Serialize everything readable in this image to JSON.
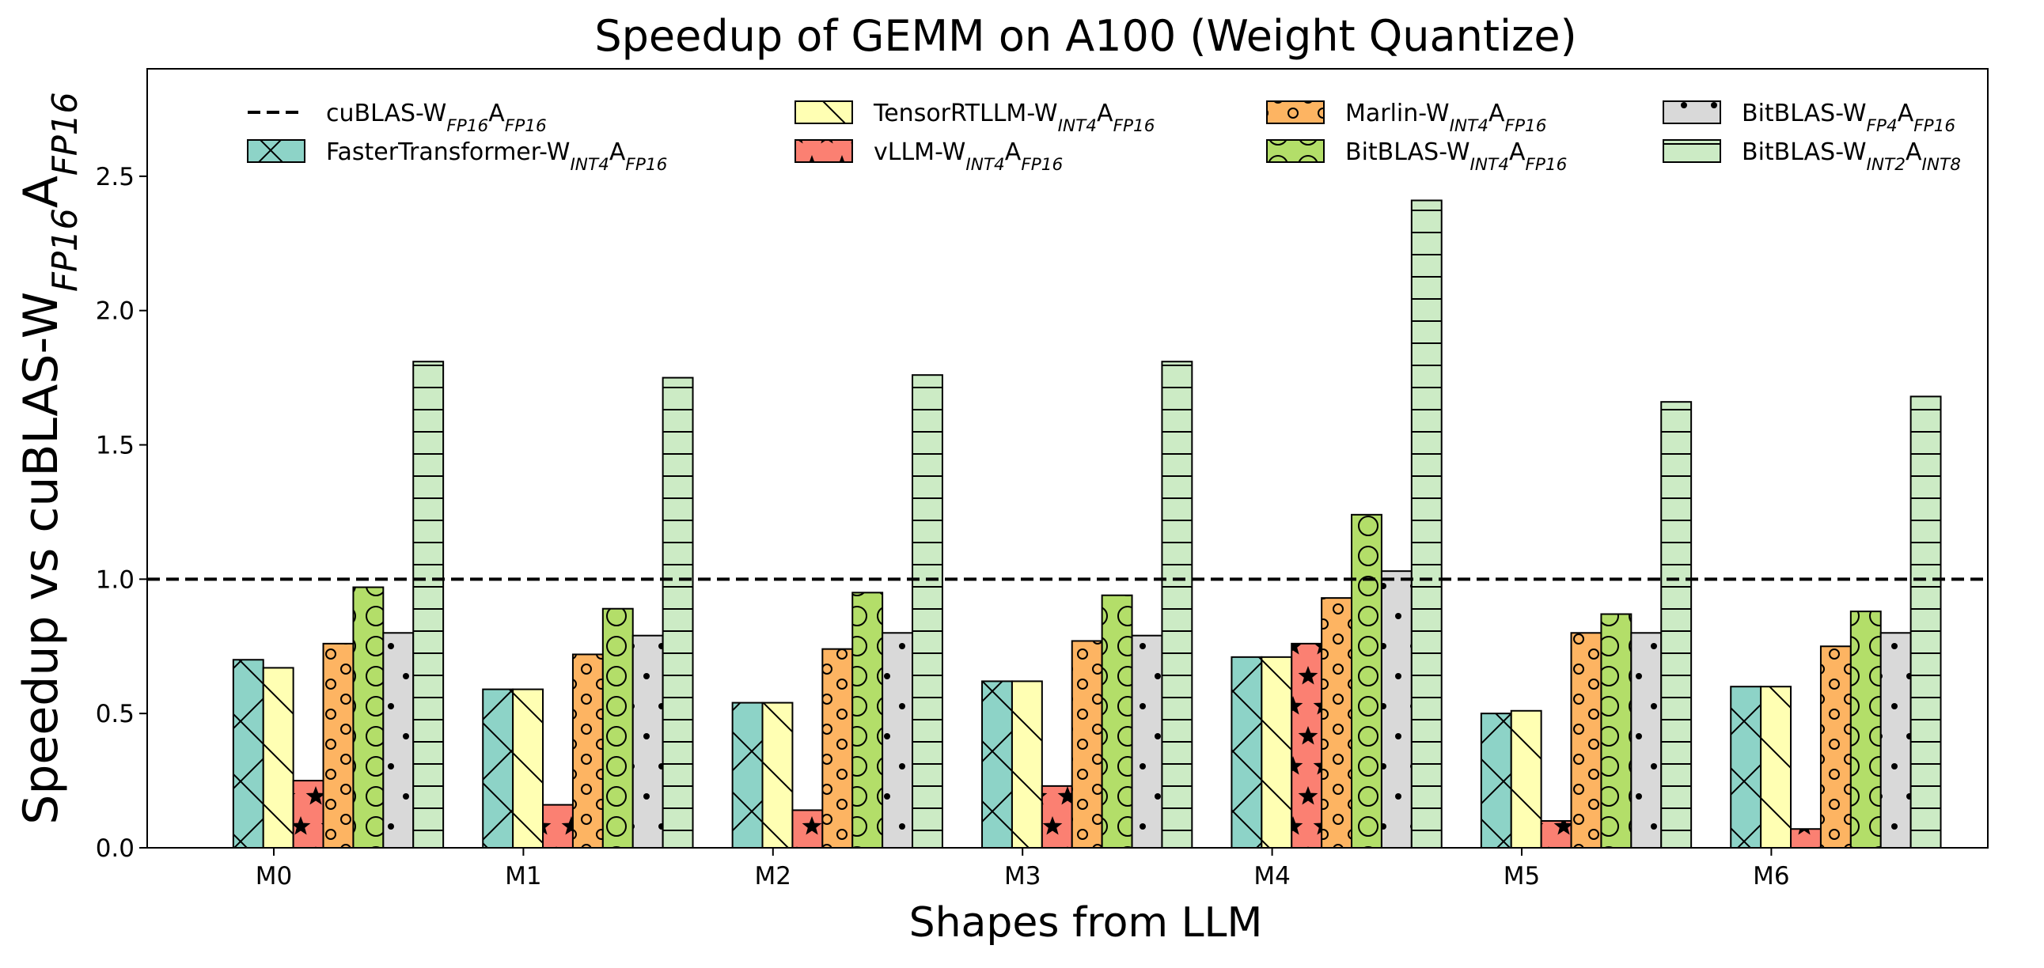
{
  "chart_data": {
    "type": "bar",
    "title": "Speedup of GEMM on A100 (Weight Quantize)",
    "xlabel": "Shapes from LLM",
    "ylabel": [
      "Speedup vs cuBLAS-W",
      "FP16",
      "A",
      "FP16"
    ],
    "categories": [
      "M0",
      "M1",
      "M2",
      "M3",
      "M4",
      "M5",
      "M6"
    ],
    "ylim": [
      0,
      2.9
    ],
    "yticks": [
      {
        "value": 0,
        "label": "0.0"
      },
      {
        "value": 0.5,
        "label": "0.5"
      },
      {
        "value": 1,
        "label": "1.0"
      },
      {
        "value": 1.5,
        "label": "1.5"
      },
      {
        "value": 2,
        "label": "2.0"
      },
      {
        "value": 2.5,
        "label": "2.5"
      }
    ],
    "reference": {
      "name": [
        "cuBLAS-W",
        "FP16",
        "A",
        "FP16"
      ],
      "value": 1.0,
      "color": "#000000"
    },
    "series": [
      {
        "name": [
          "FasterTransformer-W",
          "INT4",
          "A",
          "FP16"
        ],
        "color": "#8dd3c7",
        "hatch": "x",
        "values": [
          0.7,
          0.59,
          0.54,
          0.62,
          0.71,
          0.5,
          0.6
        ]
      },
      {
        "name": [
          "TensorRTLLM-W",
          "INT4",
          "A",
          "FP16"
        ],
        "color": "#ffffb3",
        "hatch": "\\",
        "values": [
          0.67,
          0.59,
          0.54,
          0.62,
          0.71,
          0.51,
          0.6
        ]
      },
      {
        "name": [
          "vLLM-W",
          "INT4",
          "A",
          "FP16"
        ],
        "color": "#fb8072",
        "hatch": "*",
        "values": [
          0.25,
          0.16,
          0.14,
          0.23,
          0.76,
          0.1,
          0.07
        ]
      },
      {
        "name": [
          "Marlin-W",
          "INT4",
          "A",
          "FP16"
        ],
        "color": "#fdb462",
        "hatch": "o",
        "values": [
          0.76,
          0.72,
          0.74,
          0.77,
          0.93,
          0.8,
          0.75
        ]
      },
      {
        "name": [
          "BitBLAS-W",
          "INT4",
          "A",
          "FP16"
        ],
        "color": "#b3de69",
        "hatch": "O",
        "values": [
          0.97,
          0.89,
          0.95,
          0.94,
          1.24,
          0.87,
          0.88
        ]
      },
      {
        "name": [
          "BitBLAS-W",
          "FP4",
          "A",
          "FP16"
        ],
        "color": "#d9d9d9",
        "hatch": ".",
        "values": [
          0.8,
          0.79,
          0.8,
          0.79,
          1.03,
          0.8,
          0.8
        ]
      },
      {
        "name": [
          "BitBLAS-W",
          "INT2",
          "A",
          "INT8"
        ],
        "color": "#ccebc5",
        "hatch": "-",
        "values": [
          1.81,
          1.75,
          1.76,
          1.81,
          2.41,
          1.66,
          1.68
        ]
      }
    ]
  }
}
